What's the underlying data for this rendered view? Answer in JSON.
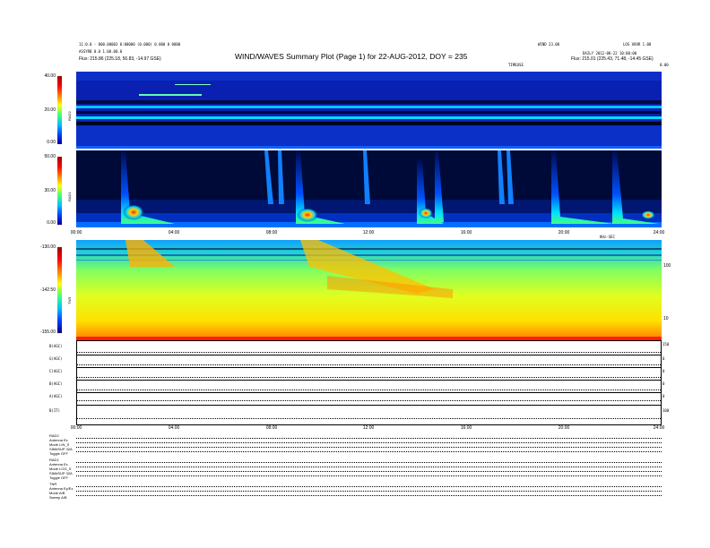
{
  "header": {
    "title": "WIND/WAVES Summary Plot (Page 1) for 22-AUG-2012, DOY = 235",
    "left_line1": "11:0.0 - 000.00003 0:00000 (0.000) 0.000 0 0000",
    "left_line2": "ASSYRB 0.0 1.00.00.0",
    "left_line3": "Flux:   215.86 (225.18, 56.83, -14.97 GSE)",
    "center_right": "WIND 23.00",
    "right_line1": "LOS VOOR 1.00",
    "right_line2": "DAILY  2012-08-22 10:00:00",
    "right_line3": "Flux:   215.01 (225.43, 71.48, -14.45 GSE)",
    "tag_top": "TIMEUSE",
    "tag_right": "0.00"
  },
  "panels": {
    "rad2": {
      "label": "RAD2",
      "ticks": [
        "40.00",
        "20.00",
        "0.00"
      ]
    },
    "rad1": {
      "label": "RAD1",
      "ticks": [
        "50.00",
        "30.00",
        "0.00"
      ]
    },
    "tnr": {
      "label": "TNR",
      "ticks": [
        "-130.00",
        "-142.50",
        "-155.00"
      ],
      "right_ticks": [
        "100",
        "10"
      ],
      "right_title": "KHz-SEC"
    }
  },
  "time_axis": {
    "labels": [
      "00:00",
      "04:00",
      "08:00",
      "12:00",
      "16:00",
      "20:00",
      "24:00"
    ]
  },
  "housekeeping": {
    "rows": [
      "B(AGC)",
      "G(AGC)",
      "C(AGC)",
      "B(AGC)",
      "A(AGC)",
      "B(IT)"
    ],
    "right_vals": [
      "150",
      "0",
      "0",
      "0",
      "0",
      "100"
    ]
  },
  "params": {
    "rad2_block": [
      "RAD2",
      "Antenna    Ex",
      "Mode    LIN_S",
      "SIM#SUP  32A",
      "Toggle     OFF"
    ],
    "rad1_block": [
      "RAD1",
      "Antenna    Ex",
      "Mode   LOG_S",
      "SIM#SUP  32A",
      "Toggle     OFF"
    ],
    "tnr_block": [
      "TNR",
      "Antenna  Ey/Ez",
      "Mode      A/B",
      "Sweep     A/B"
    ]
  },
  "chart_data": [
    {
      "type": "heatmap",
      "title": "RAD2",
      "ylim": [
        0,
        40
      ],
      "xlim": [
        "00:00",
        "24:00"
      ]
    },
    {
      "type": "heatmap",
      "title": "RAD1",
      "ylim": [
        0,
        50
      ],
      "xlim": [
        "00:00",
        "24:00"
      ]
    },
    {
      "type": "heatmap",
      "title": "TNR",
      "ylim": [
        -155,
        -130
      ],
      "xlim": [
        "00:00",
        "24:00"
      ]
    }
  ]
}
